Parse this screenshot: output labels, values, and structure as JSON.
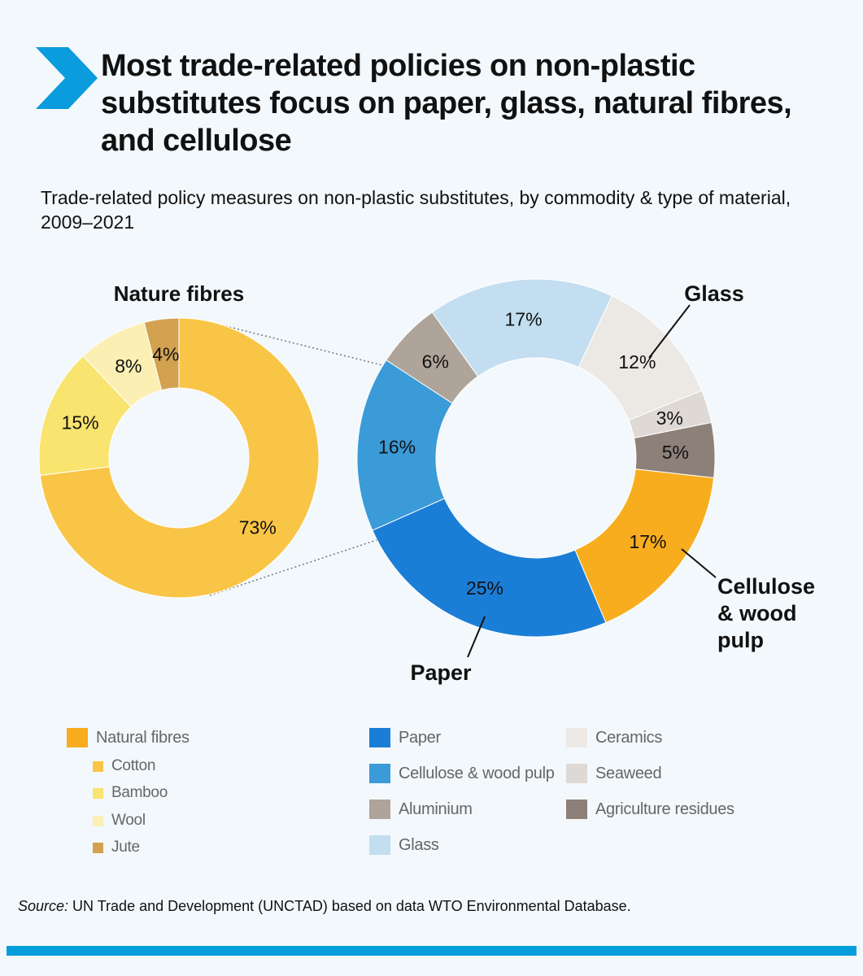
{
  "header": {
    "title": "Most trade-related policies on non-plastic substitutes focus on paper, glass, natural fibres, and cellulose",
    "subtitle": "Trade-related policy measures on non-plastic substitutes, by commodity & type of material, 2009–2021",
    "accent_color": "#0a9cdc"
  },
  "chart_data": [
    {
      "type": "pie",
      "variant": "donut",
      "title": "Nature fibres",
      "categories": [
        "Cotton",
        "Bamboo",
        "Wool",
        "Jute"
      ],
      "values": [
        73,
        15,
        8,
        4
      ],
      "labels": [
        "73%",
        "15%",
        "8%",
        "4%"
      ],
      "colors": [
        "#f9c546",
        "#f8e46e",
        "#fbefb4",
        "#d2a250"
      ]
    },
    {
      "type": "pie",
      "variant": "donut",
      "title": "",
      "categories": [
        "Paper",
        "Cellulose & wood pulp",
        "Aluminium",
        "Glass",
        "Ceramics",
        "Seaweed",
        "Agriculture residues",
        "Natural fibres"
      ],
      "values": [
        25,
        16,
        6,
        17,
        12,
        3,
        5,
        17
      ],
      "labels": [
        "25%",
        "16%",
        "6%",
        "17%",
        "12%",
        "3%",
        "5%",
        "17%"
      ],
      "colors": [
        "#1b7ed6",
        "#3b9ad8",
        "#afa49a",
        "#c3def0",
        "#ece8e4",
        "#ded9d4",
        "#8d8079",
        "#f8ad1e"
      ],
      "callouts": [
        "Paper",
        "Cellulose & wood pulp",
        "Glass"
      ]
    }
  ],
  "callouts": {
    "glass": "Glass",
    "cellulose_lines": [
      "Cellulose",
      "& wood",
      "pulp"
    ],
    "paper": "Paper"
  },
  "legend": {
    "column1": [
      {
        "label": "Natural fibres",
        "color": "#f8ad1e",
        "level": 0
      },
      {
        "label": "Cotton",
        "color": "#f9c546",
        "level": 1
      },
      {
        "label": "Bamboo",
        "color": "#f8e46e",
        "level": 1
      },
      {
        "label": "Wool",
        "color": "#fbefb4",
        "level": 1
      },
      {
        "label": "Jute",
        "color": "#d2a250",
        "level": 1
      }
    ],
    "column2": [
      {
        "label": "Paper",
        "color": "#1b7ed6"
      },
      {
        "label": "Cellulose & wood pulp",
        "color": "#3b9ad8"
      },
      {
        "label": "Aluminium",
        "color": "#afa49a"
      },
      {
        "label": "Glass",
        "color": "#c3def0"
      }
    ],
    "column3": [
      {
        "label": "Ceramics",
        "color": "#ece8e4"
      },
      {
        "label": "Seaweed",
        "color": "#ded9d4"
      },
      {
        "label": "Agriculture residues",
        "color": "#8d8079"
      }
    ]
  },
  "source": {
    "label": "Source:",
    "text": " UN Trade and Development (UNCTAD) based on data WTO Environmental Database."
  },
  "footer": {
    "bar_color": "#009edb"
  }
}
